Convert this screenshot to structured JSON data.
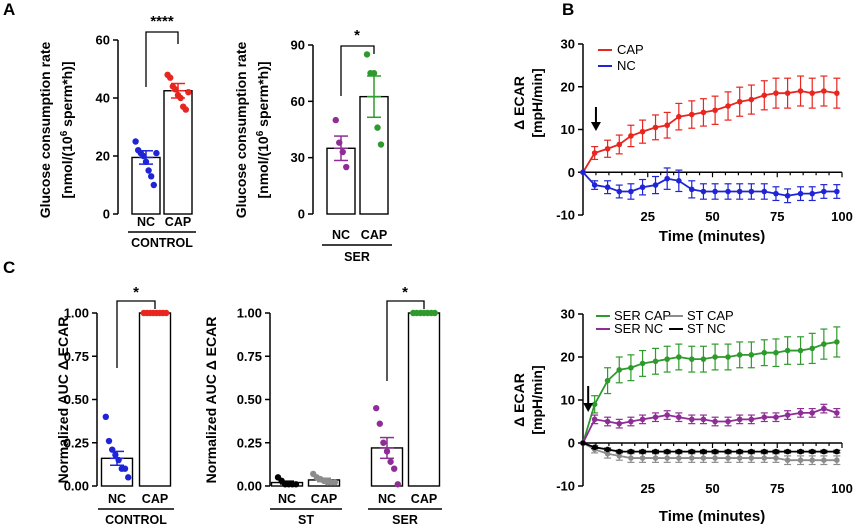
{
  "panel_labels": {
    "a": "A",
    "b": "B",
    "c": "C"
  },
  "colors": {
    "nc": "#1f24d6",
    "cap": "#e8251f",
    "ser": "#8f2d96",
    "sercap": "#2e9a2c",
    "st_nc": "#000000",
    "st_cap": "#8c8c8c",
    "black": "#000000"
  },
  "chart_data": [
    {
      "id": "a1",
      "type": "bar",
      "ylabel1": "Glucose consumption rate",
      "ylabel2": "[nmol/(10",
      "ylabel_sup": "6",
      "ylabel3": " sperm*h)]",
      "ylim": [
        0,
        60
      ],
      "yticks": [
        0,
        20,
        40,
        60
      ],
      "categories": [
        "NC",
        "CAP"
      ],
      "group": "CONTROL",
      "values": [
        19.5,
        42.5
      ],
      "errors": [
        2.3,
        2.5
      ],
      "point_colors": [
        "nc",
        "cap"
      ],
      "points": [
        [
          25,
          22,
          21,
          20,
          18,
          15,
          13,
          10,
          21
        ],
        [
          48,
          47,
          44,
          43,
          41,
          40,
          37,
          36,
          42
        ]
      ],
      "significance": "****"
    },
    {
      "id": "a2",
      "type": "bar",
      "ylabel1": "Glucose consumption rate",
      "ylabel2": "[nmol/(10",
      "ylabel_sup": "6",
      "ylabel3": " sperm*h)]",
      "ylim": [
        0,
        90
      ],
      "yticks": [
        0,
        30,
        60,
        90
      ],
      "categories": [
        "NC",
        "CAP"
      ],
      "group": "SER",
      "values": [
        35,
        62.5
      ],
      "errors": [
        6.5,
        11
      ],
      "point_colors": [
        "ser",
        "sercap"
      ],
      "points": [
        [
          50,
          38,
          33,
          25
        ],
        [
          85,
          75,
          75,
          46,
          37
        ]
      ],
      "significance": "*"
    },
    {
      "id": "b1",
      "type": "line",
      "xlabel": "Time (minutes)",
      "ylabel1": "Δ ECAR",
      "ylabel2": "[mpH/min]",
      "xlim": [
        0,
        100
      ],
      "ylim": [
        -10,
        30
      ],
      "xticks": [
        25,
        50,
        75,
        100
      ],
      "yticks": [
        -10,
        0,
        10,
        20,
        30
      ],
      "arrow_at": 5,
      "x": [
        0,
        4.5,
        9.5,
        14,
        18.5,
        23,
        28,
        32.5,
        37,
        42,
        46.5,
        51,
        56,
        60.5,
        65,
        70,
        74.5,
        79,
        84,
        88.5,
        93,
        98
      ],
      "series": [
        {
          "name": "CAP",
          "color": "cap",
          "values": [
            0,
            4.5,
            5.5,
            6.5,
            8.5,
            9.5,
            10.5,
            11,
            13,
            13.5,
            14,
            14.5,
            15.5,
            16.5,
            17,
            18,
            18.5,
            18.5,
            19,
            18.5,
            19,
            18.5
          ],
          "errors": [
            0,
            1.5,
            2,
            2.2,
            2.5,
            2.7,
            2.9,
            3,
            3.1,
            3.2,
            3.2,
            3.3,
            3.3,
            3.4,
            3.4,
            3.4,
            3.5,
            3.5,
            3.5,
            3.5,
            3.5,
            3.5
          ]
        },
        {
          "name": "NC",
          "color": "nc",
          "values": [
            0,
            -3,
            -3.5,
            -4.5,
            -4.5,
            -3.5,
            -3,
            -1.5,
            -2,
            -4,
            -4.5,
            -4.5,
            -4.5,
            -4.5,
            -4.5,
            -4.5,
            -5,
            -5.5,
            -5,
            -5,
            -4.5,
            -4.5
          ],
          "errors": [
            0,
            1,
            1.5,
            1.5,
            1.8,
            1.8,
            2,
            2.5,
            2.5,
            2,
            1.8,
            1.8,
            1.8,
            1.8,
            1.8,
            1.8,
            1.6,
            1.6,
            1.6,
            1.6,
            1.6,
            1.6
          ]
        }
      ]
    },
    {
      "id": "b2",
      "type": "line",
      "xlabel": "Time (minutes)",
      "ylabel1": "Δ ECAR",
      "ylabel2": "[mpH/min]",
      "xlim": [
        0,
        100
      ],
      "ylim": [
        -10,
        30
      ],
      "xticks": [
        25,
        50,
        75,
        100
      ],
      "yticks": [
        -10,
        0,
        10,
        20,
        30
      ],
      "arrow_at": 2,
      "x": [
        0,
        4.5,
        9.5,
        14,
        18.5,
        23,
        28,
        32.5,
        37,
        42,
        46.5,
        51,
        56,
        60.5,
        65,
        70,
        74.5,
        79,
        84,
        88.5,
        93,
        98
      ],
      "series": [
        {
          "name": "SER CAP",
          "color": "sercap",
          "values": [
            0,
            9,
            14.5,
            17,
            17.5,
            18.5,
            19,
            19.5,
            20,
            19.5,
            19.5,
            20,
            20,
            20.5,
            20.5,
            21,
            21,
            21.5,
            21.5,
            22,
            23,
            23.5
          ],
          "errors": [
            0,
            2,
            3,
            3,
            3,
            3,
            3,
            3,
            3,
            3,
            3,
            3,
            3,
            3,
            3,
            3,
            3.2,
            3.2,
            3.2,
            3.5,
            3.5,
            3.5
          ]
        },
        {
          "name": "SER NC",
          "color": "ser",
          "values": [
            0,
            5.5,
            5,
            4.5,
            5,
            5.5,
            6,
            6.5,
            6,
            5.5,
            5.5,
            5,
            5,
            5.5,
            5.5,
            6,
            6,
            6.5,
            7,
            7,
            8,
            7
          ],
          "errors": [
            0,
            1,
            1,
            1,
            1,
            1,
            1,
            1,
            1,
            1,
            1,
            1,
            1,
            1,
            1,
            1,
            1,
            1,
            1,
            1,
            1,
            1
          ]
        },
        {
          "name": "ST CAP",
          "color": "st_cap",
          "values": [
            0,
            -1.5,
            -2.5,
            -3,
            -3.5,
            -3.5,
            -3.5,
            -3.5,
            -3.5,
            -3.5,
            -3.5,
            -3.5,
            -3.5,
            -3.5,
            -3.5,
            -3.5,
            -3.5,
            -4,
            -4,
            -4,
            -4,
            -4
          ],
          "errors": [
            0,
            0.8,
            1,
            1,
            1,
            1,
            1,
            1,
            1,
            1,
            1,
            1,
            1,
            1,
            1,
            1,
            1,
            1,
            1,
            1,
            1,
            1
          ]
        },
        {
          "name": "ST NC",
          "color": "st_nc",
          "values": [
            0,
            -1,
            -1.5,
            -2,
            -2,
            -2,
            -2,
            -2,
            -2,
            -2,
            -2,
            -2,
            -2,
            -2,
            -2,
            -2,
            -2,
            -2,
            -2,
            -2,
            -2,
            -2
          ],
          "errors": [
            0,
            0.3,
            0.3,
            0.3,
            0.3,
            0.3,
            0.3,
            0.3,
            0.3,
            0.3,
            0.3,
            0.3,
            0.3,
            0.3,
            0.3,
            0.3,
            0.3,
            0.3,
            0.3,
            0.3,
            0.3,
            0.3
          ]
        }
      ]
    },
    {
      "id": "c1",
      "type": "bar",
      "ylabel1": "Normalized AUC Δ ECAR",
      "ylim": [
        0,
        1.0
      ],
      "yticks": [
        "0.00",
        "0.25",
        "0.50",
        "0.75",
        "1.00"
      ],
      "categories": [
        "NC",
        "CAP"
      ],
      "group": "CONTROL",
      "values": [
        0.16,
        1.0
      ],
      "errors": [
        0.04,
        0
      ],
      "point_colors": [
        "nc",
        "cap"
      ],
      "points": [
        [
          0.4,
          0.26,
          0.21,
          0.18,
          0.15,
          0.1,
          0.1,
          0.05
        ],
        [
          1,
          1,
          1,
          1,
          1,
          1,
          1,
          1
        ]
      ],
      "significance": "*"
    },
    {
      "id": "c2",
      "type": "bar",
      "ylabel1": "Normalized AUC Δ ECAR",
      "ylim": [
        0,
        1.0
      ],
      "yticks": [
        "0.00",
        "0.25",
        "0.50",
        "0.75",
        "1.00"
      ],
      "categories": [
        "NC",
        "CAP",
        "NC",
        "CAP"
      ],
      "groups": [
        "ST",
        "SER"
      ],
      "values": [
        0.02,
        0.035,
        0.22,
        1.0
      ],
      "errors": [
        0.008,
        0.01,
        0.06,
        0
      ],
      "point_colors": [
        "st_nc",
        "st_cap",
        "ser",
        "sercap"
      ],
      "points": [
        [
          0.05,
          0.03,
          0.01,
          0.01,
          0.01,
          0.01
        ],
        [
          0.07,
          0.05,
          0.04,
          0.03,
          0.02,
          0.02,
          0.02
        ],
        [
          0.45,
          0.36,
          0.25,
          0.2,
          0.14,
          0.1,
          0.01
        ],
        [
          1,
          1,
          1,
          1,
          1,
          1,
          1
        ]
      ],
      "significance": "*"
    }
  ]
}
